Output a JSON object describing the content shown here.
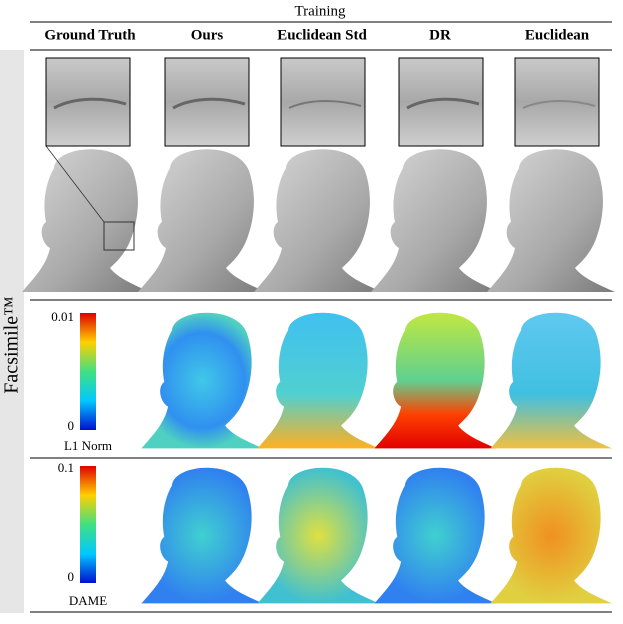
{
  "header": {
    "group": "Training",
    "columns": [
      "Ground Truth",
      "Ours",
      "Euclidean Std",
      "DR",
      "Euclidean"
    ]
  },
  "row_label": "Facsimile™",
  "colorbars": [
    {
      "max": "0.01",
      "min": "0",
      "label": "L1 Norm"
    },
    {
      "max": "0.1",
      "min": "0",
      "label": "DAME"
    }
  ]
}
